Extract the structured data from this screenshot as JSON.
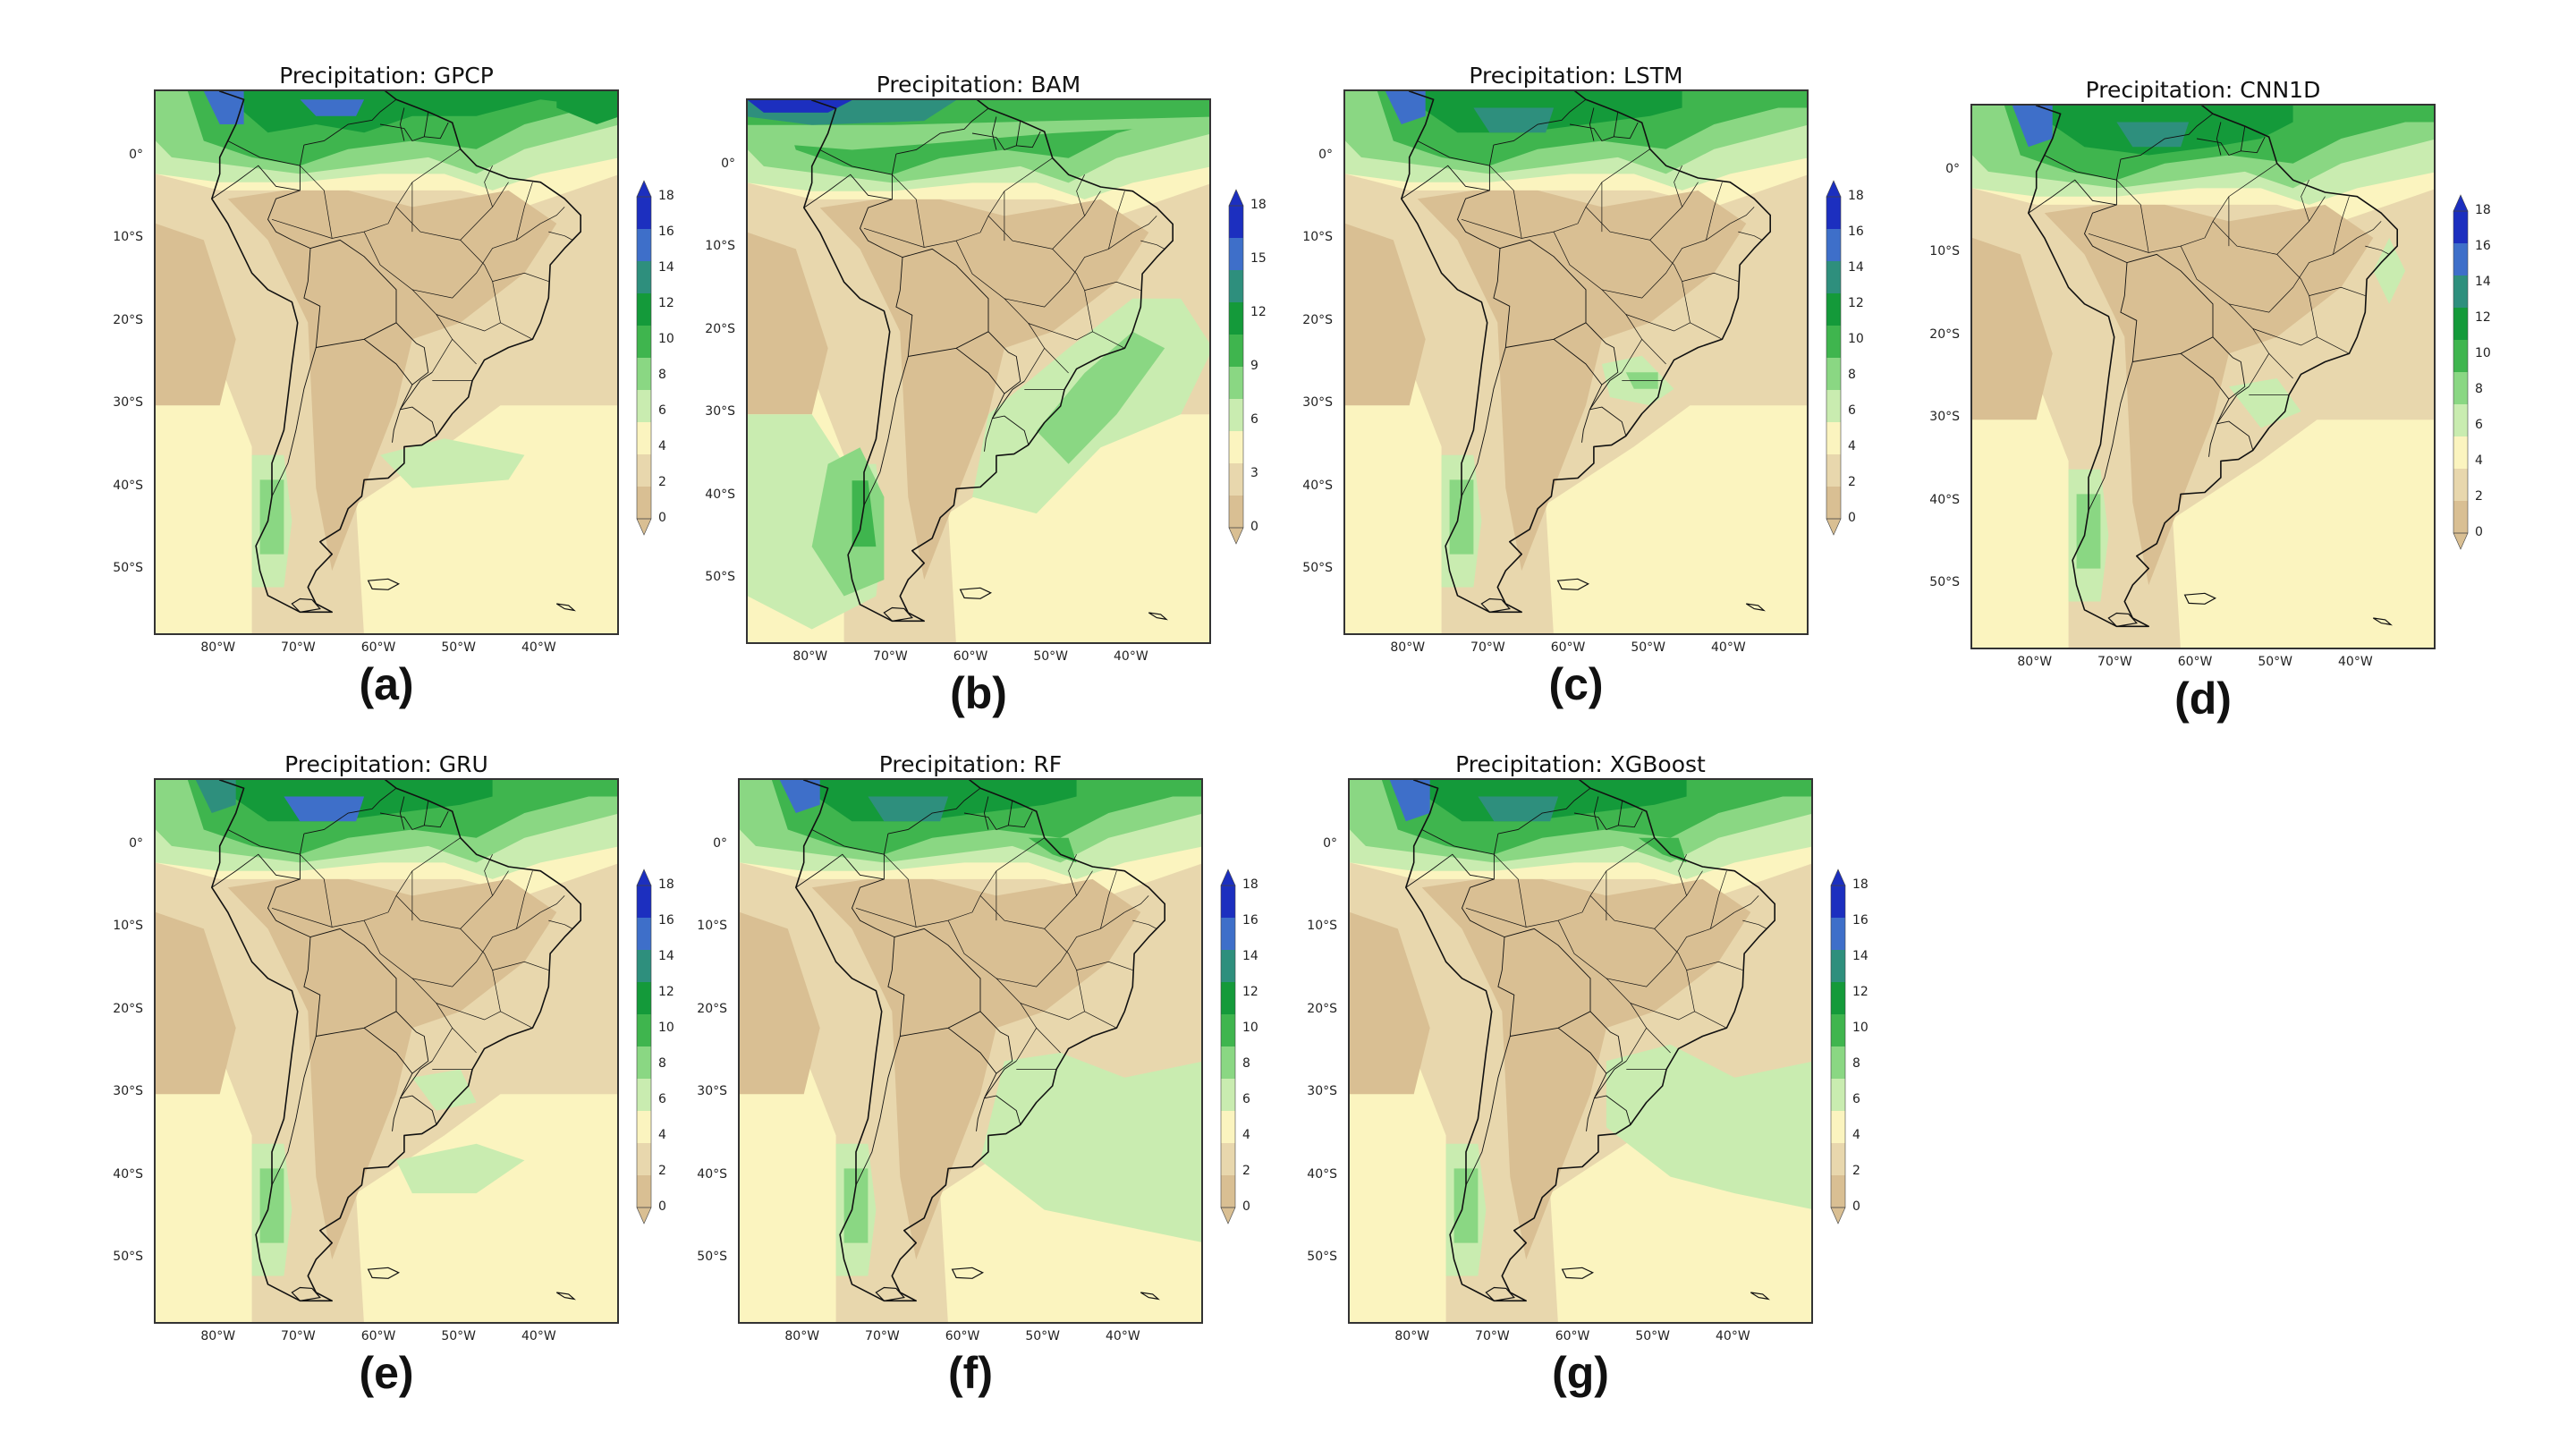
{
  "chart_data": [
    {
      "type": "heatmap",
      "id": "a",
      "title": "Precipitation: GPCP",
      "label": "(a)",
      "colorbar_ticks": [
        "0",
        "2",
        "4",
        "6",
        "8",
        "10",
        "12",
        "14",
        "16",
        "18"
      ],
      "y_ticks": [
        "0°",
        "10°S",
        "20°S",
        "30°S",
        "40°S",
        "50°S"
      ],
      "x_ticks": [
        "80°W",
        "70°W",
        "60°W",
        "50°W",
        "40°W"
      ],
      "lon_range": [
        -88,
        -30
      ],
      "lat_range": [
        -58,
        8
      ]
    },
    {
      "type": "heatmap",
      "id": "b",
      "title": "Precipitation: BAM",
      "label": "(b)",
      "colorbar_ticks": [
        "0",
        "3",
        "6",
        "9",
        "12",
        "15",
        "18"
      ],
      "y_ticks": [
        "0°",
        "10°S",
        "20°S",
        "30°S",
        "40°S",
        "50°S"
      ],
      "x_ticks": [
        "80°W",
        "70°W",
        "60°W",
        "50°W",
        "40°W"
      ],
      "lon_range": [
        -88,
        -30
      ],
      "lat_range": [
        -58,
        8
      ]
    },
    {
      "type": "heatmap",
      "id": "c",
      "title": "Precipitation: LSTM",
      "label": "(c)",
      "colorbar_ticks": [
        "0",
        "2",
        "4",
        "6",
        "8",
        "10",
        "12",
        "14",
        "16",
        "18"
      ],
      "y_ticks": [
        "0°",
        "10°S",
        "20°S",
        "30°S",
        "40°S",
        "50°S"
      ],
      "x_ticks": [
        "80°W",
        "70°W",
        "60°W",
        "50°W",
        "40°W"
      ],
      "lon_range": [
        -88,
        -30
      ],
      "lat_range": [
        -58,
        8
      ]
    },
    {
      "type": "heatmap",
      "id": "d",
      "title": "Precipitation: CNN1D",
      "label": "(d)",
      "colorbar_ticks": [
        "0",
        "2",
        "4",
        "6",
        "8",
        "10",
        "12",
        "14",
        "16",
        "18"
      ],
      "y_ticks": [
        "0°",
        "10°S",
        "20°S",
        "30°S",
        "40°S",
        "50°S"
      ],
      "x_ticks": [
        "80°W",
        "70°W",
        "60°W",
        "50°W",
        "40°W"
      ],
      "lon_range": [
        -88,
        -30
      ],
      "lat_range": [
        -58,
        8
      ]
    },
    {
      "type": "heatmap",
      "id": "e",
      "title": "Precipitation: GRU",
      "label": "(e)",
      "colorbar_ticks": [
        "0",
        "2",
        "4",
        "6",
        "8",
        "10",
        "12",
        "14",
        "16",
        "18"
      ],
      "y_ticks": [
        "0°",
        "10°S",
        "20°S",
        "30°S",
        "40°S",
        "50°S"
      ],
      "x_ticks": [
        "80°W",
        "70°W",
        "60°W",
        "50°W",
        "40°W"
      ],
      "lon_range": [
        -88,
        -30
      ],
      "lat_range": [
        -58,
        8
      ]
    },
    {
      "type": "heatmap",
      "id": "f",
      "title": "Precipitation: RF",
      "label": "(f)",
      "colorbar_ticks": [
        "0",
        "2",
        "4",
        "6",
        "8",
        "10",
        "12",
        "14",
        "16",
        "18"
      ],
      "y_ticks": [
        "0°",
        "10°S",
        "20°S",
        "30°S",
        "40°S",
        "50°S"
      ],
      "x_ticks": [
        "80°W",
        "70°W",
        "60°W",
        "50°W",
        "40°W"
      ],
      "lon_range": [
        -88,
        -30
      ],
      "lat_range": [
        -58,
        8
      ]
    },
    {
      "type": "heatmap",
      "id": "g",
      "title": "Precipitation: XGBoost",
      "label": "(g)",
      "colorbar_ticks": [
        "0",
        "2",
        "4",
        "6",
        "8",
        "10",
        "12",
        "14",
        "16",
        "18"
      ],
      "y_ticks": [
        "0°",
        "10°S",
        "20°S",
        "30°S",
        "40°S",
        "50°S"
      ],
      "x_ticks": [
        "80°W",
        "70°W",
        "60°W",
        "50°W",
        "40°W"
      ],
      "lon_range": [
        -88,
        -30
      ],
      "lat_range": [
        -58,
        8
      ]
    }
  ],
  "colors": {
    "c0": "#d9bf93",
    "c2": "#e8d7ad",
    "c4": "#fbf4bf",
    "c6": "#c9ecb0",
    "c8": "#8ad783",
    "c10": "#3fb54e",
    "c12": "#149a3a",
    "c14": "#2e8f7d",
    "c16": "#3e6fc9",
    "c18": "#1c2fbf",
    "coast": "#111111"
  }
}
